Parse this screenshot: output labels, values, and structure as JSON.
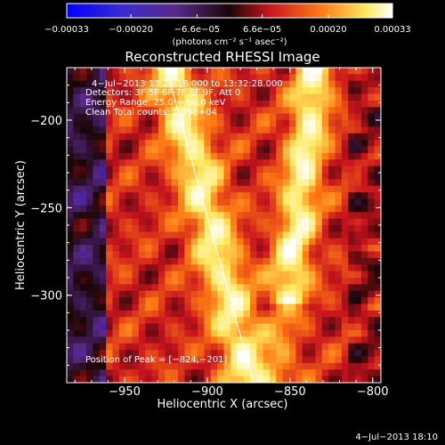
{
  "chart_data": {
    "type": "heatmap",
    "title": "Reconstructed RHESSI Image",
    "xlabel": "Heliocentric X (arcsec)",
    "ylabel": "Heliocentric Y (arcsec)",
    "xlim": [
      -985,
      -795
    ],
    "ylim": [
      -350,
      -170
    ],
    "x_ticks": [
      {
        "value": -950,
        "label": "−950"
      },
      {
        "value": -900,
        "label": "−900"
      },
      {
        "value": -850,
        "label": "−850"
      },
      {
        "value": -800,
        "label": "−800"
      }
    ],
    "y_ticks": [
      {
        "value": -200,
        "label": "−200"
      },
      {
        "value": -250,
        "label": "−250"
      },
      {
        "value": -300,
        "label": "−300"
      }
    ],
    "colorbar": {
      "range": [
        -0.00033,
        0.00033
      ],
      "ticks": [
        {
          "value": -0.00033,
          "label": "−0.00033"
        },
        {
          "value": -0.0002,
          "label": "−0.00020"
        },
        {
          "value": -6.6e-05,
          "label": "−6.6e−05"
        },
        {
          "value": 6.6e-05,
          "label": "6.6e−05"
        },
        {
          "value": 0.0002,
          "label": "0.00020"
        },
        {
          "value": 0.00033,
          "label": "0.00033"
        }
      ],
      "units_label": "(photons cm⁻² s⁻¹ asec⁻²)",
      "colors": [
        "#0000ff",
        "#5a2a8c",
        "#1a0608",
        "#c8141e",
        "#ff7a14",
        "#ffea60",
        "#ffffff"
      ]
    },
    "annotations": {
      "time_range": "4−Jul−2013 13:28:16.000 to 13:32:28.000",
      "detectors": "Detectors: 3F 5F 6F 7F 8F 9F, Att 0",
      "energy_range": "Energy Range: 25.0 − 50.0 keV",
      "method": "Clean     Total counts: 1.05E+04",
      "peak": "Position of Peak = [−824,−201]"
    },
    "limb_line": {
      "x": [
        -925,
        -872
      ],
      "y": [
        -170,
        -350
      ]
    },
    "peak_position": {
      "x": -824,
      "y": -201
    }
  },
  "footer": {
    "timestamp": "4−Jul−2013 18:10"
  }
}
